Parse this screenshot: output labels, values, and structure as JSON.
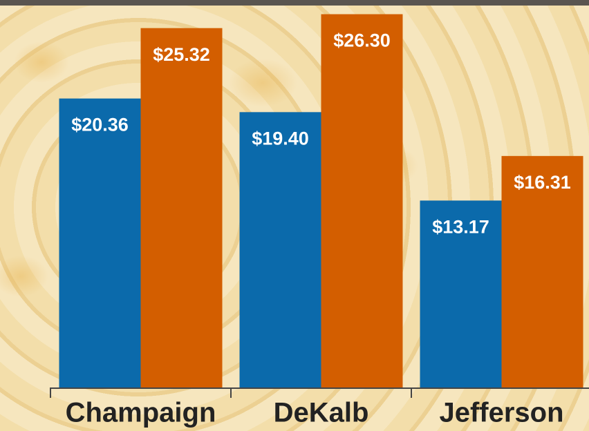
{
  "chart_data": {
    "type": "bar",
    "categories": [
      "Champaign",
      "DeKalb",
      "Jefferson"
    ],
    "series": [
      {
        "color": "#0b6aab",
        "values": [
          20.36,
          19.4,
          13.17
        ],
        "value_labels": [
          "$20.36",
          "$19.40",
          "$13.17"
        ]
      },
      {
        "color": "#d35e00",
        "values": [
          25.32,
          26.3,
          16.31
        ],
        "value_labels": [
          "$25.32",
          "$26.30",
          "$16.31"
        ]
      }
    ],
    "ylim": [
      0,
      27.3
    ]
  }
}
